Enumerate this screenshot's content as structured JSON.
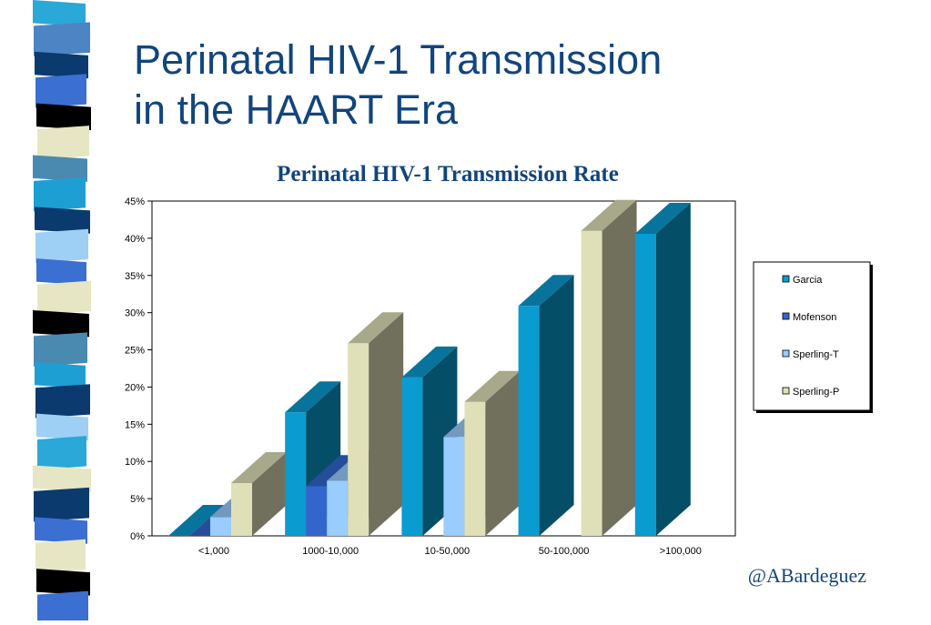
{
  "slide": {
    "title_line1": "Perinatal HIV-1 Transmission",
    "title_line2": "in the HAART Era",
    "credit": "@ABardeguez"
  },
  "chart_data": {
    "type": "bar",
    "title": "Perinatal HIV-1 Transmission Rate",
    "xlabel": "",
    "ylabel": "",
    "ylim": [
      0,
      45
    ],
    "yticks": [
      "0%",
      "5%",
      "10%",
      "15%",
      "20%",
      "25%",
      "30%",
      "35%",
      "40%",
      "45%"
    ],
    "categories": [
      "<1,000",
      "1000-10,000",
      "10-50,000",
      "50-100,000",
      ">100,000"
    ],
    "series": [
      {
        "name": "Garcia",
        "color": "#0a9bd0",
        "values": [
          0,
          16.6,
          21.3,
          30.9,
          40.6
        ]
      },
      {
        "name": "Mofenson",
        "color": "#3366cc",
        "values": [
          0,
          6.7,
          null,
          null,
          null
        ]
      },
      {
        "name": "Sperling-T",
        "color": "#99ccff",
        "values": [
          2.5,
          7.4,
          13.3,
          null,
          null
        ]
      },
      {
        "name": "Sperling-P",
        "color": "#e0e0b8",
        "values": [
          7.1,
          25.9,
          18.0,
          41.0,
          null
        ]
      }
    ],
    "legend_position": "right",
    "grid": false,
    "three_d": true
  },
  "decor": {
    "stripe_colors": [
      "#2aa8d8",
      "#4d84c4",
      "#0a3a6e",
      "#3b6fd1",
      "#000000",
      "#e6e6c4",
      "#4a8ab0",
      "#1e9fd4",
      "#0a3a6e",
      "#9ed0f5",
      "#3b6fd1",
      "#e6e6c4",
      "#000000",
      "#4a8ab0",
      "#1e9fd4",
      "#0a3a6e",
      "#9ed0f5",
      "#2aa8d8",
      "#e6e6c4",
      "#0a3a6e",
      "#3b6fd1",
      "#e6e6c4",
      "#000000",
      "#3b6fd1"
    ]
  }
}
